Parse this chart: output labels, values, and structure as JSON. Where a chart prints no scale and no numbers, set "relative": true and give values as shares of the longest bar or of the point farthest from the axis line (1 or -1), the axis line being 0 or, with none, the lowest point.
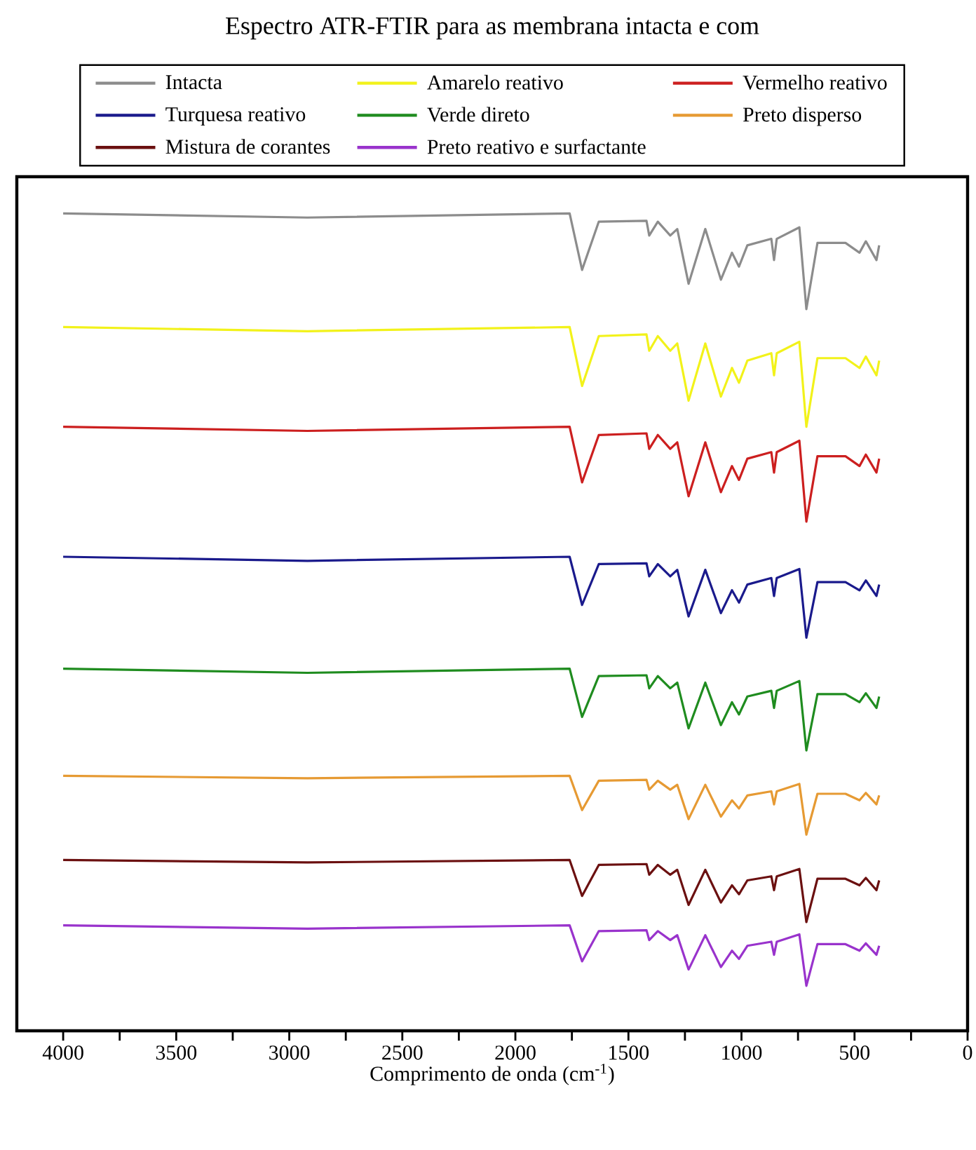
{
  "chart_data": {
    "type": "line",
    "relative": true,
    "title": "Espectro ATR-FTIR para as membrana intacta e com",
    "xlabel": "Comprimento de onda (cm$^{-1}$)",
    "x": [
      4000,
      2920,
      1760,
      1705,
      1631,
      1420,
      1408,
      1370,
      1315,
      1284,
      1234,
      1160,
      1091,
      1042,
      1011,
      974,
      868,
      856,
      844,
      744,
      713,
      664,
      540,
      478,
      450,
      403,
      391
    ],
    "xlim": [
      4205,
      0
    ],
    "xticks": [
      4000,
      {
        "value": 3750,
        "label": null
      },
      3500,
      {
        "value": 3250,
        "label": null
      },
      3000,
      {
        "value": 2750,
        "label": null
      },
      2500,
      {
        "value": 2250,
        "label": null
      },
      2000,
      {
        "value": 1750,
        "label": null
      },
      1500,
      {
        "value": 1250,
        "label": null
      },
      1000,
      {
        "value": 750,
        "label": null
      },
      500,
      {
        "value": 250,
        "label": null
      },
      0
    ],
    "tick_labels": "x",
    "legend": "top",
    "line_style": "solid",
    "series": [
      {
        "name": "Intacta",
        "color": "#8c8c8c",
        "values": [
          1.0,
          0.995,
          1.0,
          0.931,
          0.99,
          0.991,
          0.973,
          0.99,
          0.973,
          0.981,
          0.914,
          0.981,
          0.919,
          0.952,
          0.935,
          0.961,
          0.969,
          0.943,
          0.969,
          0.983,
          0.883,
          0.964,
          0.964,
          0.952,
          0.966,
          0.943,
          0.961
        ]
      },
      {
        "name": "Amarelo reativo",
        "color": "#f2f21a",
        "values": [
          0.861,
          0.856,
          0.861,
          0.789,
          0.85,
          0.852,
          0.832,
          0.85,
          0.832,
          0.841,
          0.771,
          0.841,
          0.776,
          0.811,
          0.793,
          0.82,
          0.829,
          0.802,
          0.829,
          0.843,
          0.739,
          0.823,
          0.823,
          0.811,
          0.825,
          0.802,
          0.82
        ]
      },
      {
        "name": "Vermelho reativo",
        "color": "#cc1f1f",
        "values": [
          0.739,
          0.734,
          0.739,
          0.671,
          0.729,
          0.731,
          0.712,
          0.729,
          0.712,
          0.72,
          0.654,
          0.72,
          0.659,
          0.691,
          0.674,
          0.7,
          0.708,
          0.683,
          0.708,
          0.722,
          0.623,
          0.703,
          0.703,
          0.691,
          0.705,
          0.683,
          0.7
        ]
      },
      {
        "name": "Turquesa reativo",
        "color": "#1a1a8c",
        "values": [
          0.58,
          0.575,
          0.58,
          0.521,
          0.571,
          0.572,
          0.556,
          0.571,
          0.556,
          0.564,
          0.507,
          0.564,
          0.511,
          0.539,
          0.524,
          0.546,
          0.554,
          0.532,
          0.554,
          0.565,
          0.481,
          0.549,
          0.549,
          0.539,
          0.551,
          0.532,
          0.546
        ]
      },
      {
        "name": "Verde direto",
        "color": "#1f8c1f",
        "values": [
          0.443,
          0.438,
          0.443,
          0.384,
          0.434,
          0.435,
          0.419,
          0.434,
          0.419,
          0.426,
          0.37,
          0.426,
          0.374,
          0.402,
          0.387,
          0.409,
          0.416,
          0.395,
          0.416,
          0.428,
          0.343,
          0.412,
          0.412,
          0.402,
          0.413,
          0.395,
          0.409
        ]
      },
      {
        "name": "Preto disperso",
        "color": "#e69a33",
        "values": [
          0.312,
          0.309,
          0.312,
          0.27,
          0.306,
          0.307,
          0.295,
          0.306,
          0.295,
          0.301,
          0.259,
          0.301,
          0.262,
          0.282,
          0.272,
          0.288,
          0.293,
          0.277,
          0.293,
          0.302,
          0.24,
          0.29,
          0.29,
          0.282,
          0.291,
          0.277,
          0.288
        ]
      },
      {
        "name": "Mistura de corantes",
        "color": "#6b1010",
        "values": [
          0.209,
          0.206,
          0.209,
          0.165,
          0.203,
          0.204,
          0.191,
          0.203,
          0.191,
          0.197,
          0.154,
          0.197,
          0.157,
          0.178,
          0.167,
          0.184,
          0.189,
          0.172,
          0.189,
          0.198,
          0.133,
          0.186,
          0.186,
          0.178,
          0.187,
          0.172,
          0.184
        ]
      },
      {
        "name": "Preto reativo e surfactante",
        "color": "#9933cc",
        "values": [
          0.129,
          0.125,
          0.129,
          0.085,
          0.122,
          0.123,
          0.111,
          0.122,
          0.111,
          0.117,
          0.075,
          0.117,
          0.078,
          0.098,
          0.088,
          0.104,
          0.109,
          0.093,
          0.109,
          0.118,
          0.055,
          0.106,
          0.106,
          0.098,
          0.107,
          0.093,
          0.104
        ]
      }
    ]
  }
}
